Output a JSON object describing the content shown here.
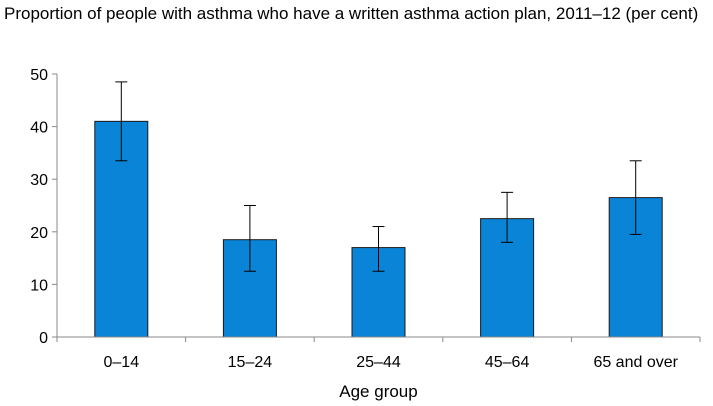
{
  "chart_data": {
    "type": "bar",
    "title": "Proportion of people with asthma who have a written asthma action plan, 2011–12 (per cent)",
    "xlabel": "Age group",
    "ylabel": "",
    "categories": [
      "0–14",
      "15–24",
      "25–44",
      "45–64",
      "65 and over"
    ],
    "values": [
      41,
      18.5,
      17,
      22.5,
      26.5
    ],
    "error_bars": {
      "lower": [
        33.5,
        12.5,
        12.5,
        18,
        19.5
      ],
      "upper": [
        48.5,
        25,
        21,
        27.5,
        33.5
      ]
    },
    "ylim": [
      0,
      50
    ],
    "yticks": [
      "0",
      "10",
      "20",
      "30",
      "40",
      "50"
    ],
    "grid": false,
    "legend": "none",
    "colors": {
      "bar_fill": "#0a84d6",
      "bar_stroke": "#1a1a1a",
      "axis": "#888888",
      "error_bar": "#000000"
    }
  }
}
